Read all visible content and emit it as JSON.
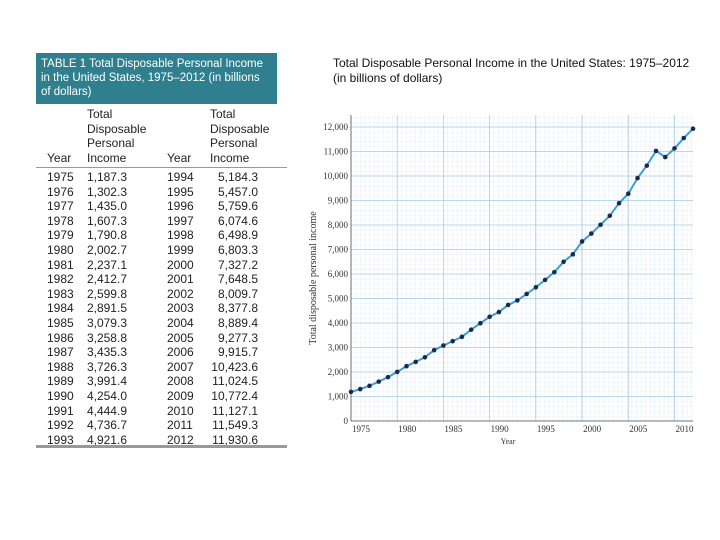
{
  "table": {
    "title": "TABLE 1  Total Disposable Personal Income in the United States, 1975–2012 (in billions of dollars)",
    "headers": [
      "Year",
      "Total Disposable Personal Income",
      "Year",
      "Total Disposable Personal Income"
    ],
    "rows": [
      [
        "1975",
        "1,187.3",
        "1994",
        "5,184.3"
      ],
      [
        "1976",
        "1,302.3",
        "1995",
        "5,457.0"
      ],
      [
        "1977",
        "1,435.0",
        "1996",
        "5,759.6"
      ],
      [
        "1978",
        "1,607.3",
        "1997",
        "6,074.6"
      ],
      [
        "1979",
        "1,790.8",
        "1998",
        "6,498.9"
      ],
      [
        "1980",
        "2,002.7",
        "1999",
        "6,803.3"
      ],
      [
        "1981",
        "2,237.1",
        "2000",
        "7,327.2"
      ],
      [
        "1982",
        "2,412.7",
        "2001",
        "7,648.5"
      ],
      [
        "1983",
        "2,599.8",
        "2002",
        "8,009.7"
      ],
      [
        "1984",
        "2,891.5",
        "2003",
        "8,377.8"
      ],
      [
        "1985",
        "3,079.3",
        "2004",
        "8,889.4"
      ],
      [
        "1986",
        "3,258.8",
        "2005",
        "9,277.3"
      ],
      [
        "1987",
        "3,435.3",
        "2006",
        "9,915.7"
      ],
      [
        "1988",
        "3,726.3",
        "2007",
        "10,423.6"
      ],
      [
        "1989",
        "3,991.4",
        "2008",
        "11,024.5"
      ],
      [
        "1990",
        "4,254.0",
        "2009",
        "10,772.4"
      ],
      [
        "1991",
        "4,444.9",
        "2010",
        "11,127.1"
      ],
      [
        "1992",
        "4,736.7",
        "2011",
        "11,549.3"
      ],
      [
        "1993",
        "4,921.6",
        "2012",
        "11,930.6"
      ]
    ]
  },
  "chart_data": {
    "type": "line",
    "title": "Total Disposable Personal Income in the United States: 1975–2012 (in billions of dollars)",
    "x_label": "Year",
    "y_label": "Total disposable personal income",
    "x": [
      1975,
      1976,
      1977,
      1978,
      1979,
      1980,
      1981,
      1982,
      1983,
      1984,
      1985,
      1986,
      1987,
      1988,
      1989,
      1990,
      1991,
      1992,
      1993,
      1994,
      1995,
      1996,
      1997,
      1998,
      1999,
      2000,
      2001,
      2002,
      2003,
      2004,
      2005,
      2006,
      2007,
      2008,
      2009,
      2010,
      2011,
      2012
    ],
    "series": [
      {
        "color": "#3a9fd3",
        "values": [
          1187.3,
          1302.3,
          1435.0,
          1607.3,
          1790.8,
          2002.7,
          2237.1,
          2412.7,
          2599.8,
          2891.5,
          3079.3,
          3258.8,
          3435.3,
          3726.3,
          3991.4,
          4254.0,
          4444.9,
          4736.7,
          4921.6,
          5184.3,
          5457.0,
          5759.6,
          6074.6,
          6498.9,
          6803.3,
          7327.2,
          7648.5,
          8009.7,
          8377.8,
          8889.4,
          9277.3,
          9915.7,
          10423.6,
          11024.5,
          10772.4,
          11127.1,
          11549.3,
          11930.6
        ]
      }
    ],
    "xlim": [
      1975,
      2012
    ],
    "xticks": [
      1975,
      1980,
      1985,
      1990,
      1995,
      2000,
      2005,
      2010
    ],
    "ylim": [
      0,
      12000
    ],
    "yticks": [
      0,
      {
        "value": 1000,
        "label": "1,000"
      },
      {
        "value": 2000,
        "label": "2,000"
      },
      {
        "value": 3000,
        "label": "3,000"
      },
      {
        "value": 4000,
        "label": "4,000"
      },
      {
        "value": 5000,
        "label": "5,000"
      },
      {
        "value": 6000,
        "label": "6,000"
      },
      {
        "value": 7000,
        "label": "7,000"
      },
      {
        "value": 8000,
        "label": "8,000"
      },
      {
        "value": 9000,
        "label": "9,000"
      },
      {
        "value": 10000,
        "label": "10,000"
      },
      {
        "value": 11000,
        "label": "11,000"
      },
      {
        "value": 12000,
        "label": "12,000"
      }
    ],
    "grid": true,
    "marker_color": "#1c2a4a"
  }
}
